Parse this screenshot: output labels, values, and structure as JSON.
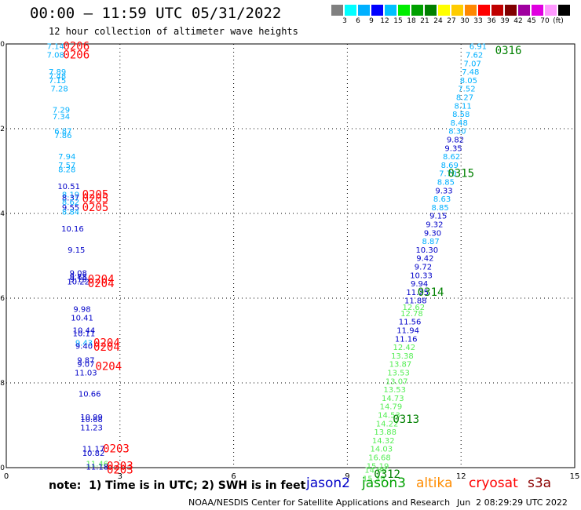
{
  "header": {
    "title": "00:00 – 11:59 UTC 05/31/2022",
    "subtitle": "12 hour collection of altimeter wave heights"
  },
  "colorbar": {
    "colors": [
      "#808080",
      "#00ffff",
      "#00b0ff",
      "#0000ff",
      "#00c0ff",
      "#00ee00",
      "#00a000",
      "#008000",
      "#ffff00",
      "#ffcc00",
      "#ff8800",
      "#ff0000",
      "#c00000",
      "#800000",
      "#a000a0",
      "#e000e0",
      "#ff99ff",
      "#000000"
    ],
    "labels": [
      "3",
      "6",
      "9",
      "12",
      "15",
      "18",
      "21",
      "24",
      "27",
      "30",
      "33",
      "36",
      "39",
      "42",
      "45",
      "70",
      "(ft)"
    ]
  },
  "footer": {
    "note": "note:  1) Time is in UTC; 2) SWH is in feet",
    "credit": "NOAA/NESDIS Center for Satellite Applications and Research",
    "timestamp": "Jun  2 08:29:29 UTC 2022",
    "satellites": [
      {
        "name": "jason2",
        "color": "#0000c8"
      },
      {
        "name": "jason3",
        "color": "#00a000"
      },
      {
        "name": "altika",
        "color": "#ff8c00"
      },
      {
        "name": "cryosat",
        "color": "#ff0000"
      },
      {
        "name": "s3a",
        "color": "#8b0000"
      }
    ]
  },
  "chart_data": {
    "type": "scatter",
    "xlim": [
      0,
      15
    ],
    "ylim": [
      -40,
      -30
    ],
    "x_ticks": [
      "0",
      "3",
      "6",
      "9",
      "12",
      "15"
    ],
    "y_ticks": [
      "-30",
      "-32",
      "-34",
      "-36",
      "-38",
      "-40"
    ],
    "grid": true,
    "points": [
      {
        "x": 1.3,
        "y": -30.05,
        "text": "7.14",
        "color": "#00b0ff"
      },
      {
        "x": 1.3,
        "y": -30.25,
        "text": "7.08",
        "color": "#00b0ff"
      },
      {
        "x": 1.35,
        "y": -30.65,
        "text": "7.89",
        "color": "#00b0ff"
      },
      {
        "x": 1.35,
        "y": -30.75,
        "text": "7.48",
        "color": "#00b0ff"
      },
      {
        "x": 1.35,
        "y": -30.85,
        "text": "7.15",
        "color": "#00b0ff"
      },
      {
        "x": 1.4,
        "y": -31.05,
        "text": "7.28",
        "color": "#00b0ff"
      },
      {
        "x": 1.45,
        "y": -31.55,
        "text": "7.29",
        "color": "#00b0ff"
      },
      {
        "x": 1.45,
        "y": -31.7,
        "text": "7.34",
        "color": "#00b0ff"
      },
      {
        "x": 1.5,
        "y": -32.05,
        "text": "6.87",
        "color": "#00b0ff"
      },
      {
        "x": 1.5,
        "y": -32.15,
        "text": "7.86",
        "color": "#00b0ff"
      },
      {
        "x": 1.6,
        "y": -32.65,
        "text": "7.94",
        "color": "#00b0ff"
      },
      {
        "x": 1.6,
        "y": -32.85,
        "text": "7.57",
        "color": "#00b0ff"
      },
      {
        "x": 1.6,
        "y": -32.95,
        "text": "8.28",
        "color": "#00b0ff"
      },
      {
        "x": 1.65,
        "y": -33.35,
        "text": "10.51",
        "color": "#0000c8"
      },
      {
        "x": 1.7,
        "y": -33.55,
        "text": "8.19",
        "color": "#00b0ff"
      },
      {
        "x": 1.7,
        "y": -33.62,
        "text": "8.37",
        "color": "#0000c8"
      },
      {
        "x": 1.7,
        "y": -33.72,
        "text": "8.62",
        "color": "#00b0ff"
      },
      {
        "x": 1.7,
        "y": -33.85,
        "text": "9.55",
        "color": "#0000c8"
      },
      {
        "x": 1.7,
        "y": -33.95,
        "text": "8.84",
        "color": "#00b0ff"
      },
      {
        "x": 1.75,
        "y": -34.35,
        "text": "10.16",
        "color": "#0000c8"
      },
      {
        "x": 1.85,
        "y": -34.85,
        "text": "9.15",
        "color": "#0000c8"
      },
      {
        "x": 1.9,
        "y": -35.4,
        "text": "9.08",
        "color": "#0000c8"
      },
      {
        "x": 1.9,
        "y": -35.48,
        "text": "9.88",
        "color": "#0000c8"
      },
      {
        "x": 1.9,
        "y": -35.55,
        "text": "9.19",
        "color": "#0000c8"
      },
      {
        "x": 1.9,
        "y": -35.6,
        "text": "10.22",
        "color": "#0000c8"
      },
      {
        "x": 2.0,
        "y": -36.25,
        "text": "9.98",
        "color": "#0000c8"
      },
      {
        "x": 2.0,
        "y": -36.45,
        "text": "10.41",
        "color": "#0000c8"
      },
      {
        "x": 2.05,
        "y": -36.75,
        "text": "10.44",
        "color": "#0000c8"
      },
      {
        "x": 2.05,
        "y": -36.82,
        "text": "10.11",
        "color": "#0000c8"
      },
      {
        "x": 2.05,
        "y": -37.05,
        "text": "9.43",
        "color": "#00b0ff"
      },
      {
        "x": 2.05,
        "y": -37.12,
        "text": "9.40",
        "color": "#0000c8"
      },
      {
        "x": 2.1,
        "y": -37.45,
        "text": "9.87",
        "color": "#0000c8"
      },
      {
        "x": 2.1,
        "y": -37.55,
        "text": "9.07",
        "color": "#0000c8"
      },
      {
        "x": 2.1,
        "y": -37.75,
        "text": "11.03",
        "color": "#0000c8"
      },
      {
        "x": 2.2,
        "y": -38.25,
        "text": "10.66",
        "color": "#0000c8"
      },
      {
        "x": 2.25,
        "y": -38.8,
        "text": "10.99",
        "color": "#0000c8"
      },
      {
        "x": 2.25,
        "y": -38.85,
        "text": "10.68",
        "color": "#0000c8"
      },
      {
        "x": 2.25,
        "y": -39.05,
        "text": "11.23",
        "color": "#0000c8"
      },
      {
        "x": 2.3,
        "y": -39.55,
        "text": "11.17",
        "color": "#0000c8"
      },
      {
        "x": 2.3,
        "y": -39.65,
        "text": "10.82",
        "color": "#0000c8"
      },
      {
        "x": 2.4,
        "y": -39.9,
        "text": "11.46",
        "color": "#55ee55"
      },
      {
        "x": 2.4,
        "y": -39.97,
        "text": "11.18",
        "color": "#0000c8"
      },
      {
        "x": 12.45,
        "y": -30.05,
        "text": "6.91",
        "color": "#00b0ff"
      },
      {
        "x": 12.35,
        "y": -30.25,
        "text": "7.62",
        "color": "#00b0ff"
      },
      {
        "x": 12.3,
        "y": -30.45,
        "text": "7.07",
        "color": "#00b0ff"
      },
      {
        "x": 12.25,
        "y": -30.65,
        "text": "7.48",
        "color": "#00b0ff"
      },
      {
        "x": 12.2,
        "y": -30.85,
        "text": "8.05",
        "color": "#00b0ff"
      },
      {
        "x": 12.15,
        "y": -31.05,
        "text": "7.52",
        "color": "#00b0ff"
      },
      {
        "x": 12.1,
        "y": -31.25,
        "text": "8.27",
        "color": "#00b0ff"
      },
      {
        "x": 12.05,
        "y": -31.45,
        "text": "8.11",
        "color": "#00b0ff"
      },
      {
        "x": 12.0,
        "y": -31.65,
        "text": "8.58",
        "color": "#00b0ff"
      },
      {
        "x": 11.95,
        "y": -31.85,
        "text": "8.48",
        "color": "#00b0ff"
      },
      {
        "x": 11.9,
        "y": -32.05,
        "text": "8.30",
        "color": "#00b0ff"
      },
      {
        "x": 11.85,
        "y": -32.25,
        "text": "9.82",
        "color": "#0000c8"
      },
      {
        "x": 11.8,
        "y": -32.45,
        "text": "9.35",
        "color": "#0000c8"
      },
      {
        "x": 11.75,
        "y": -32.65,
        "text": "8.62",
        "color": "#00b0ff"
      },
      {
        "x": 11.7,
        "y": -32.85,
        "text": "8.69",
        "color": "#00b0ff"
      },
      {
        "x": 11.65,
        "y": -33.05,
        "text": "7.70",
        "color": "#00b0ff"
      },
      {
        "x": 11.6,
        "y": -33.25,
        "text": "8.85",
        "color": "#00b0ff"
      },
      {
        "x": 11.55,
        "y": -33.45,
        "text": "9.33",
        "color": "#0000c8"
      },
      {
        "x": 11.5,
        "y": -33.65,
        "text": "8.63",
        "color": "#00b0ff"
      },
      {
        "x": 11.45,
        "y": -33.85,
        "text": "8.85",
        "color": "#00b0ff"
      },
      {
        "x": 11.4,
        "y": -34.05,
        "text": "9.15",
        "color": "#0000c8"
      },
      {
        "x": 11.3,
        "y": -34.25,
        "text": "9.32",
        "color": "#0000c8"
      },
      {
        "x": 11.25,
        "y": -34.45,
        "text": "9.30",
        "color": "#0000c8"
      },
      {
        "x": 11.2,
        "y": -34.65,
        "text": "8.87",
        "color": "#00b0ff"
      },
      {
        "x": 11.1,
        "y": -34.85,
        "text": "10.30",
        "color": "#0000c8"
      },
      {
        "x": 11.05,
        "y": -35.05,
        "text": "9.42",
        "color": "#0000c8"
      },
      {
        "x": 11.0,
        "y": -35.25,
        "text": "9.72",
        "color": "#0000c8"
      },
      {
        "x": 10.95,
        "y": -35.45,
        "text": "10.33",
        "color": "#0000c8"
      },
      {
        "x": 10.9,
        "y": -35.65,
        "text": "9.94",
        "color": "#0000c8"
      },
      {
        "x": 10.85,
        "y": -35.85,
        "text": "11.25",
        "color": "#0000c8"
      },
      {
        "x": 10.8,
        "y": -36.05,
        "text": "11.88",
        "color": "#0000c8"
      },
      {
        "x": 10.75,
        "y": -36.2,
        "text": "12.62",
        "color": "#55ee55"
      },
      {
        "x": 10.7,
        "y": -36.35,
        "text": "12.78",
        "color": "#55ee55"
      },
      {
        "x": 10.65,
        "y": -36.55,
        "text": "11.56",
        "color": "#0000c8"
      },
      {
        "x": 10.6,
        "y": -36.75,
        "text": "11.94",
        "color": "#0000c8"
      },
      {
        "x": 10.55,
        "y": -36.95,
        "text": "11.16",
        "color": "#0000c8"
      },
      {
        "x": 10.5,
        "y": -37.15,
        "text": "12.42",
        "color": "#55ee55"
      },
      {
        "x": 10.45,
        "y": -37.35,
        "text": "13.38",
        "color": "#55ee55"
      },
      {
        "x": 10.4,
        "y": -37.55,
        "text": "13.87",
        "color": "#55ee55"
      },
      {
        "x": 10.35,
        "y": -37.75,
        "text": "13.53",
        "color": "#55ee55"
      },
      {
        "x": 10.3,
        "y": -37.95,
        "text": "13.07",
        "color": "#55ee55"
      },
      {
        "x": 10.25,
        "y": -38.15,
        "text": "13.53",
        "color": "#55ee55"
      },
      {
        "x": 10.2,
        "y": -38.35,
        "text": "14.73",
        "color": "#55ee55"
      },
      {
        "x": 10.15,
        "y": -38.55,
        "text": "14.79",
        "color": "#55ee55"
      },
      {
        "x": 10.1,
        "y": -38.75,
        "text": "14.53",
        "color": "#55ee55"
      },
      {
        "x": 10.05,
        "y": -38.95,
        "text": "14.22",
        "color": "#55ee55"
      },
      {
        "x": 10.0,
        "y": -39.15,
        "text": "13.88",
        "color": "#55ee55"
      },
      {
        "x": 9.95,
        "y": -39.35,
        "text": "14.32",
        "color": "#55ee55"
      },
      {
        "x": 9.9,
        "y": -39.55,
        "text": "14.03",
        "color": "#55ee55"
      },
      {
        "x": 9.85,
        "y": -39.75,
        "text": "16.68",
        "color": "#55ee55"
      },
      {
        "x": 9.8,
        "y": -39.95,
        "text": "15.19",
        "color": "#55ee55"
      },
      {
        "x": 9.75,
        "y": -40.05,
        "text": "14.88",
        "color": "#55ee55"
      },
      {
        "x": 9.7,
        "y": -40.25,
        "text": "15.39",
        "color": "#55ee55"
      }
    ],
    "track_labels": [
      {
        "x": 1.85,
        "y": -30.05,
        "text": "0206",
        "color": "#ff0000"
      },
      {
        "x": 1.85,
        "y": -30.25,
        "text": "0206",
        "color": "#ff0000"
      },
      {
        "x": 2.35,
        "y": -33.55,
        "text": "0205",
        "color": "#ff0000"
      },
      {
        "x": 2.35,
        "y": -33.65,
        "text": "0205",
        "color": "#ff0000"
      },
      {
        "x": 2.35,
        "y": -33.85,
        "text": "0205",
        "color": "#ff0000"
      },
      {
        "x": 2.5,
        "y": -35.55,
        "text": "0204",
        "color": "#ff0000"
      },
      {
        "x": 2.5,
        "y": -35.65,
        "text": "0204",
        "color": "#ff0000"
      },
      {
        "x": 2.65,
        "y": -37.05,
        "text": "0204",
        "color": "#ff0000"
      },
      {
        "x": 2.65,
        "y": -37.15,
        "text": "0204",
        "color": "#ff0000"
      },
      {
        "x": 2.7,
        "y": -37.6,
        "text": "0204",
        "color": "#ff0000"
      },
      {
        "x": 2.9,
        "y": -39.55,
        "text": "0203",
        "color": "#ff0000"
      },
      {
        "x": 3.0,
        "y": -39.95,
        "text": "0203",
        "color": "#ff0000"
      },
      {
        "x": 3.0,
        "y": -40.05,
        "text": "0203",
        "color": "#ff0000"
      },
      {
        "x": 13.25,
        "y": -30.15,
        "text": "0316",
        "color": "#008000"
      },
      {
        "x": 12.0,
        "y": -33.05,
        "text": "0315",
        "color": "#008000"
      },
      {
        "x": 11.2,
        "y": -35.85,
        "text": "0314",
        "color": "#008000"
      },
      {
        "x": 10.55,
        "y": -38.85,
        "text": "0313",
        "color": "#008000"
      },
      {
        "x": 10.05,
        "y": -40.15,
        "text": "0312",
        "color": "#008000"
      }
    ]
  }
}
